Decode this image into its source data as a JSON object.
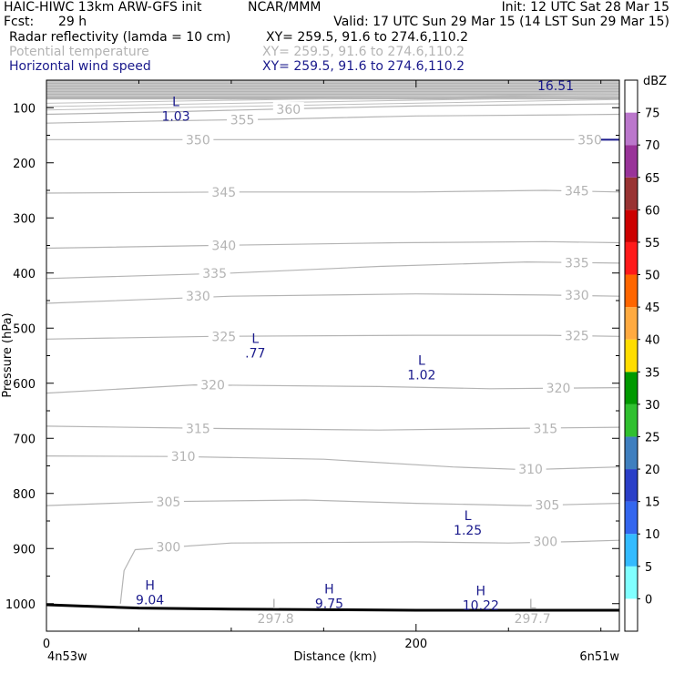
{
  "header": {
    "model": "HAIC-HIWC 13km ARW-GFS init",
    "org": "NCAR/MMM",
    "init": "Init: 12 UTC Sat 28 Mar 15",
    "fcst_label": "Fcst:",
    "fcst_value": "29 h",
    "valid": "Valid: 17 UTC Sun 29 Mar 15 (14 LST Sun 29 Mar 15)",
    "fields": [
      {
        "name": "Radar reflectivity (lamda = 10 cm)",
        "xy": "XY= 259.5, 91.6 to 274.6,110.2",
        "color": "#000000"
      },
      {
        "name": "Potential temperature",
        "xy": "XY= 259.5, 91.6 to 274.6,110.2",
        "color": "#b4b4b4"
      },
      {
        "name": "Horizontal wind speed",
        "xy": "XY= 259.5, 91.6 to 274.6,110.2",
        "color": "#1a1a8c"
      }
    ]
  },
  "chart_data": {
    "type": "line",
    "xlabel": "Distance (km)",
    "ylabel": "Pressure (hPa)",
    "xlim": [
      0,
      310
    ],
    "ylim": [
      1050,
      50
    ],
    "y_log": false,
    "x_ticks": [
      0,
      200
    ],
    "x_tick_labels": [
      "0",
      "200"
    ],
    "x_end_labels": {
      "left": "4n53w",
      "right": "6n51w"
    },
    "y_ticks": [
      100,
      200,
      300,
      400,
      500,
      600,
      700,
      800,
      900,
      1000
    ],
    "theta_contours": [
      {
        "level": 300,
        "label": "300",
        "points": [
          [
            40,
            1000
          ],
          [
            42,
            940
          ],
          [
            48,
            902
          ],
          [
            100,
            890
          ],
          [
            200,
            888
          ],
          [
            250,
            890
          ],
          [
            290,
            887
          ],
          [
            310,
            885
          ]
        ],
        "label_at": [
          [
            66,
            897
          ],
          [
            270,
            887
          ]
        ]
      },
      {
        "level": 305,
        "label": "305",
        "points": [
          [
            0,
            822
          ],
          [
            60,
            815
          ],
          [
            140,
            812
          ],
          [
            200,
            818
          ],
          [
            260,
            822
          ],
          [
            310,
            818
          ]
        ],
        "label_at": [
          [
            66,
            815
          ],
          [
            271,
            821
          ]
        ]
      },
      {
        "level": 310,
        "label": "310",
        "points": [
          [
            0,
            732
          ],
          [
            70,
            733
          ],
          [
            150,
            738
          ],
          [
            220,
            752
          ],
          [
            260,
            757
          ],
          [
            310,
            752
          ]
        ],
        "label_at": [
          [
            74,
            733
          ],
          [
            262,
            756
          ]
        ]
      },
      {
        "level": 315,
        "label": "315",
        "points": [
          [
            0,
            678
          ],
          [
            90,
            682
          ],
          [
            180,
            685
          ],
          [
            250,
            682
          ],
          [
            310,
            680
          ]
        ],
        "label_at": [
          [
            82,
            682
          ],
          [
            270,
            682
          ]
        ]
      },
      {
        "level": 320,
        "label": "320",
        "points": [
          [
            0,
            618
          ],
          [
            80,
            603
          ],
          [
            180,
            606
          ],
          [
            240,
            610
          ],
          [
            310,
            608
          ]
        ],
        "label_at": [
          [
            90,
            603
          ],
          [
            277,
            609
          ]
        ]
      },
      {
        "level": 325,
        "label": "325",
        "points": [
          [
            0,
            520
          ],
          [
            90,
            515
          ],
          [
            200,
            513
          ],
          [
            270,
            513
          ],
          [
            310,
            515
          ]
        ],
        "label_at": [
          [
            96,
            515
          ],
          [
            287,
            514
          ]
        ]
      },
      {
        "level": 330,
        "label": "330",
        "points": [
          [
            0,
            455
          ],
          [
            100,
            442
          ],
          [
            200,
            438
          ],
          [
            270,
            440
          ],
          [
            310,
            442
          ]
        ],
        "label_at": [
          [
            82,
            442
          ],
          [
            287,
            440
          ]
        ]
      },
      {
        "level": 335,
        "label": "335",
        "points": [
          [
            0,
            410
          ],
          [
            100,
            400
          ],
          [
            180,
            388
          ],
          [
            260,
            380
          ],
          [
            310,
            382
          ]
        ],
        "label_at": [
          [
            91,
            400
          ],
          [
            287,
            381
          ]
        ]
      },
      {
        "level": 340,
        "label": "340",
        "points": [
          [
            0,
            355
          ],
          [
            90,
            350
          ],
          [
            190,
            345
          ],
          [
            270,
            343
          ],
          [
            310,
            345
          ]
        ],
        "label_at": [
          [
            96,
            350
          ]
        ]
      },
      {
        "level": 345,
        "label": "345",
        "points": [
          [
            0,
            255
          ],
          [
            100,
            253
          ],
          [
            200,
            253
          ],
          [
            270,
            250
          ],
          [
            310,
            253
          ]
        ],
        "label_at": [
          [
            96,
            253
          ],
          [
            287,
            251
          ]
        ]
      },
      {
        "level": 350,
        "label": "350",
        "points": [
          [
            0,
            158
          ],
          [
            80,
            158
          ],
          [
            180,
            158
          ],
          [
            260,
            158
          ],
          [
            310,
            158
          ]
        ],
        "label_at": [
          [
            82,
            158
          ],
          [
            294,
            158
          ]
        ]
      },
      {
        "level": 355,
        "label": "355",
        "points": [
          [
            0,
            128
          ],
          [
            60,
            124
          ],
          [
            120,
            121
          ],
          [
            200,
            115
          ],
          [
            280,
            113
          ],
          [
            310,
            112
          ]
        ],
        "label_at": [
          [
            106,
            122
          ]
        ]
      },
      {
        "level": 360,
        "label": "360",
        "points": [
          [
            0,
            112
          ],
          [
            60,
            108
          ],
          [
            130,
            102
          ],
          [
            200,
            97
          ],
          [
            280,
            94
          ],
          [
            310,
            93
          ]
        ],
        "label_at": [
          [
            131,
            103
          ]
        ]
      }
    ],
    "theta_extra_contours": [
      {
        "points": [
          [
            0,
            104
          ],
          [
            310,
            85
          ]
        ]
      },
      {
        "points": [
          [
            0,
            98
          ],
          [
            310,
            80
          ]
        ]
      },
      {
        "points": [
          [
            0,
            92
          ],
          [
            310,
            75
          ]
        ]
      }
    ],
    "theta_marks": [
      {
        "letter": "L",
        "value": "297.8",
        "x": 124,
        "p": 1015
      },
      {
        "letter": "L",
        "value": "297.7",
        "x": 263,
        "p": 1015
      }
    ],
    "wind_marks": [
      {
        "letter": "L",
        "value": "1.03",
        "x": 70,
        "p": 100
      },
      {
        "letter": "L",
        "value": ".77",
        "x": 113,
        "p": 530
      },
      {
        "letter": "L",
        "value": "1.02",
        "x": 203,
        "p": 570
      },
      {
        "letter": "L",
        "value": "1.25",
        "x": 228,
        "p": 852
      },
      {
        "letter": "H",
        "value": "9.04",
        "x": 56,
        "p": 978
      },
      {
        "letter": "H",
        "value": "9.75",
        "x": 153,
        "p": 985
      },
      {
        "letter": "H",
        "value": "10.22",
        "x": 235,
        "p": 988
      }
    ],
    "wind_top_value": "16.51",
    "terrain_points": [
      [
        0,
        1002
      ],
      [
        50,
        1008
      ],
      [
        100,
        1010
      ],
      [
        150,
        1011
      ],
      [
        200,
        1012
      ],
      [
        250,
        1012
      ],
      [
        310,
        1012
      ]
    ],
    "colorbar": {
      "unit": "dBZ",
      "levels": [
        "0",
        "5",
        "10",
        "15",
        "20",
        "25",
        "30",
        "35",
        "40",
        "45",
        "50",
        "55",
        "60",
        "65",
        "70",
        "75"
      ],
      "colors": [
        "#ffffff",
        "#80ffff",
        "#33bbff",
        "#3366ee",
        "#2a3fc8",
        "#3f7fbf",
        "#30c030",
        "#009900",
        "#ffdd00",
        "#ffaa40",
        "#ff6600",
        "#ff1a1a",
        "#cc0000",
        "#993333",
        "#993399",
        "#bb77cc",
        "#ffffff"
      ]
    }
  }
}
